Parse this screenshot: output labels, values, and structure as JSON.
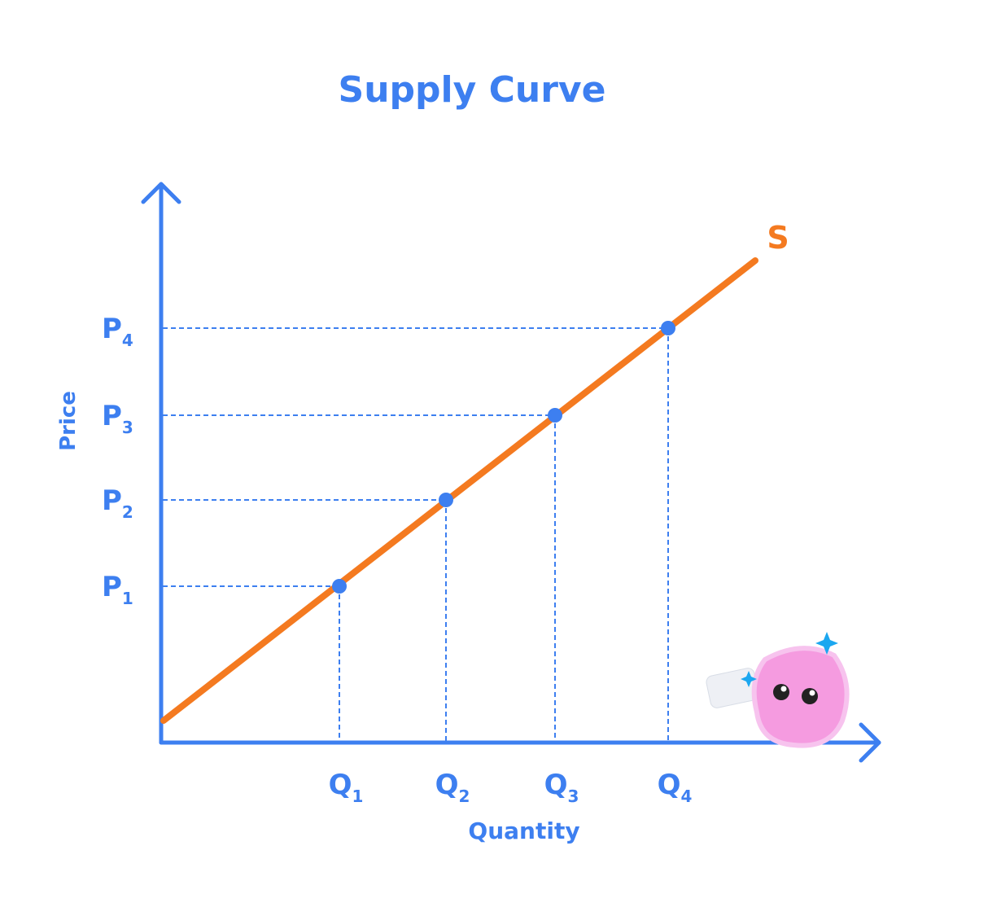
{
  "title": "Supply Curve",
  "x_axis_label": "Quantity",
  "y_axis_label": "Price",
  "curve_label": "S",
  "points": [
    {
      "price": {
        "main": "P",
        "sub": "1"
      },
      "quantity": {
        "main": "Q",
        "sub": "1"
      }
    },
    {
      "price": {
        "main": "P",
        "sub": "2"
      },
      "quantity": {
        "main": "Q",
        "sub": "2"
      }
    },
    {
      "price": {
        "main": "P",
        "sub": "3"
      },
      "quantity": {
        "main": "Q",
        "sub": "3"
      }
    },
    {
      "price": {
        "main": "P",
        "sub": "4"
      },
      "quantity": {
        "main": "Q",
        "sub": "4"
      }
    }
  ]
}
